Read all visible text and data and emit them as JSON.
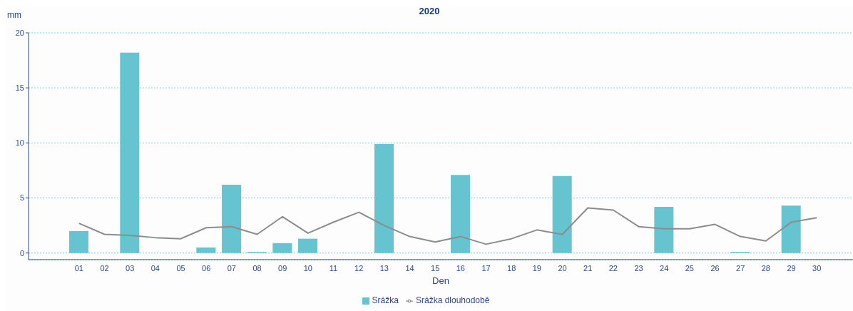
{
  "chart_data": {
    "type": "bar",
    "title": "2020",
    "xlabel": "Den",
    "ylabel": "mm",
    "categories": [
      "01",
      "02",
      "03",
      "04",
      "05",
      "06",
      "07",
      "08",
      "09",
      "10",
      "11",
      "12",
      "13",
      "14",
      "15",
      "16",
      "17",
      "18",
      "19",
      "20",
      "21",
      "22",
      "23",
      "24",
      "25",
      "26",
      "27",
      "28",
      "29",
      "30"
    ],
    "series": [
      {
        "name": "Srážka",
        "color": "#66c3d0",
        "values": [
          2.0,
          0,
          18.2,
          0,
          0,
          0.5,
          6.2,
          0.1,
          0.9,
          1.3,
          0,
          0,
          9.9,
          0,
          0,
          7.1,
          0,
          0,
          0,
          7.0,
          0,
          0,
          0,
          4.2,
          0,
          0,
          0.1,
          0,
          4.3,
          0
        ]
      },
      {
        "name": "Srážka dlouhodobě",
        "type": "line",
        "color": "#8c8c8c",
        "values": [
          2.7,
          1.7,
          1.6,
          1.4,
          1.3,
          2.3,
          2.4,
          1.7,
          3.3,
          1.8,
          2.8,
          3.7,
          2.5,
          1.5,
          1.0,
          1.5,
          0.8,
          1.3,
          2.1,
          1.7,
          4.1,
          3.9,
          2.4,
          2.2,
          2.2,
          2.6,
          1.5,
          1.1,
          2.8,
          3.2
        ]
      }
    ],
    "ylim": [
      -0.6,
      20
    ],
    "yticks": [
      0,
      5,
      10,
      15,
      20
    ],
    "grid": "y",
    "legend": "bottom",
    "marker": "none",
    "line_style": "solid"
  }
}
